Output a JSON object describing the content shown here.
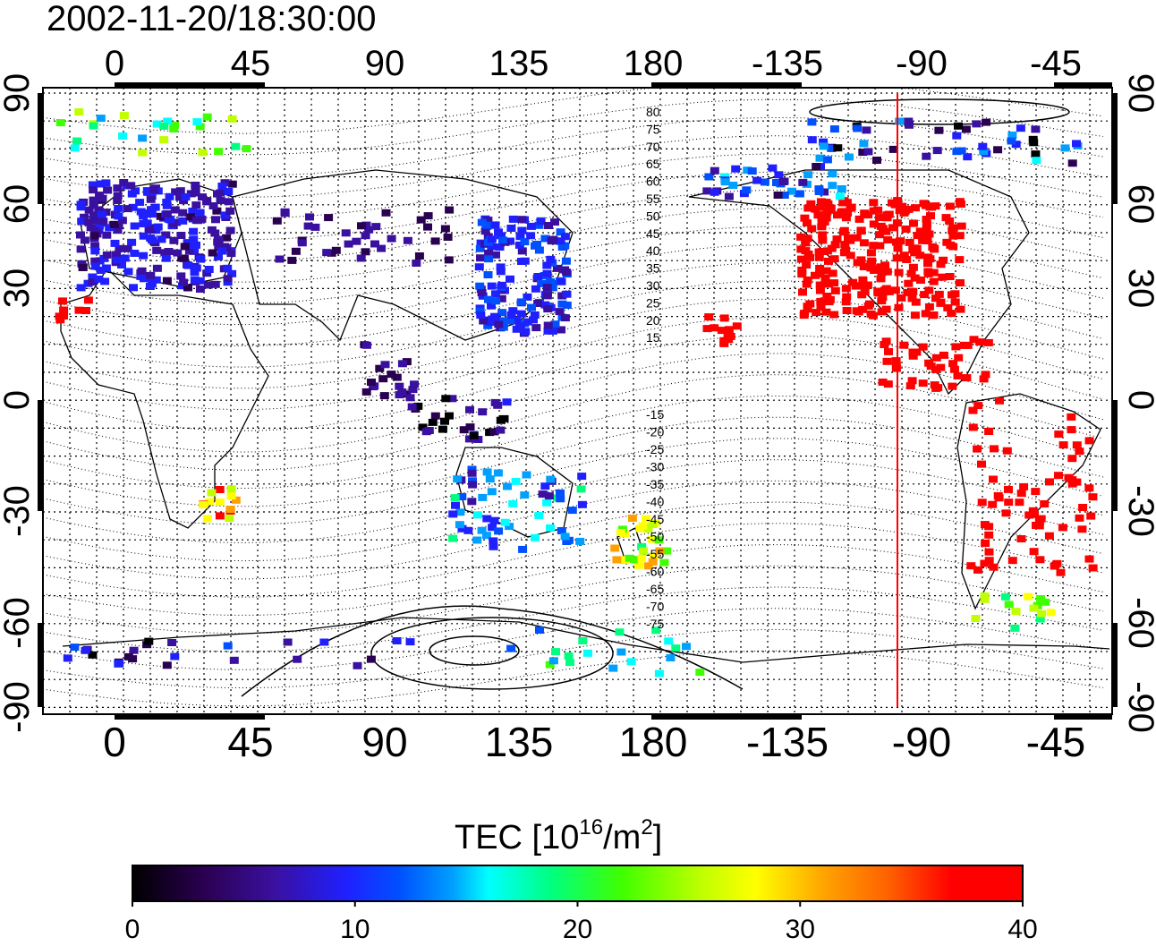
{
  "title": "2002-11-20/18:30:00",
  "map": {
    "x_ticks_top": [
      "0",
      "45",
      "90",
      "135",
      "180",
      "-135",
      "-90",
      "-45"
    ],
    "x_ticks_bottom": [
      "0",
      "45",
      "90",
      "135",
      "180",
      "-135",
      "-90",
      "-45"
    ],
    "y_ticks_left": [
      "90",
      "60",
      "30",
      "0",
      "-30",
      "-60",
      "-90"
    ],
    "y_ticks_right": [
      "90",
      "60",
      "30",
      "0",
      "-30",
      "-60",
      "-90"
    ],
    "contour_labels_north": [
      "80",
      "75",
      "70",
      "65",
      "60",
      "55",
      "50",
      "45",
      "40",
      "35",
      "30",
      "25",
      "20",
      "15"
    ],
    "contour_labels_south": [
      "-15",
      "-20",
      "-25",
      "-30",
      "-35",
      "-40",
      "-45",
      "-50",
      "-55",
      "-60",
      "-65",
      "-70",
      "-75"
    ],
    "marker_color": "#ff0000"
  },
  "colorbar": {
    "label_main": "TEC  [10",
    "label_sup1": "16",
    "label_mid": "/m",
    "label_sup2": "2",
    "label_end": "]",
    "ticks": [
      "0",
      "10",
      "20",
      "30",
      "40"
    ],
    "range": [
      0,
      40
    ]
  },
  "colors": {
    "scale": [
      "#000000",
      "#2a0050",
      "#3a10a0",
      "#2020ff",
      "#0050ff",
      "#00a0ff",
      "#00ffff",
      "#00ff80",
      "#40ff00",
      "#c0ff00",
      "#ffff00",
      "#ffa000",
      "#ff6000",
      "#ff0000",
      "#ff0000"
    ]
  }
}
